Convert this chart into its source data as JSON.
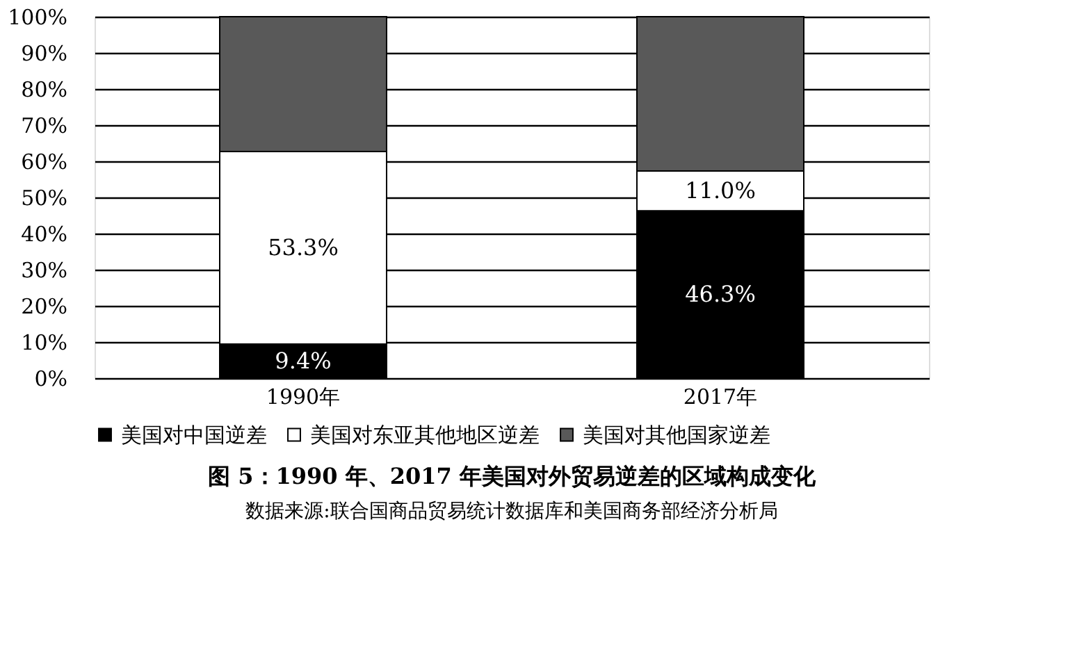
{
  "chart_data": {
    "type": "bar",
    "stacked": true,
    "title": "图 5：1990 年、2017 年美国对外贸易逆差的区域构成变化",
    "annotations": [
      "数据来源:联合国商品贸易统计数据库和美国商务部经济分析局"
    ],
    "categories": [
      "1990年",
      "2017年"
    ],
    "series": [
      {
        "name": "美国对中国逆差",
        "color": "#000000",
        "values": [
          9.4,
          46.3
        ],
        "value_labels": [
          "9.4%",
          "46.3%"
        ]
      },
      {
        "name": "美国对东亚其他地区逆差",
        "color": "#ffffff",
        "values": [
          53.3,
          11.0
        ],
        "value_labels": [
          "53.3%",
          "11.0%"
        ]
      },
      {
        "name": "美国对其他国家逆差",
        "color": "#595959",
        "values": [
          37.3,
          42.7
        ]
      }
    ],
    "ylim": [
      0,
      100
    ],
    "yticks": [
      {
        "value": 0,
        "label": "0%"
      },
      {
        "value": 10,
        "label": "10%"
      },
      {
        "value": 20,
        "label": "20%"
      },
      {
        "value": 30,
        "label": "30%"
      },
      {
        "value": 40,
        "label": "40%"
      },
      {
        "value": 50,
        "label": "50%"
      },
      {
        "value": 60,
        "label": "60%"
      },
      {
        "value": 70,
        "label": "70%"
      },
      {
        "value": 80,
        "label": "80%"
      },
      {
        "value": 90,
        "label": "90%"
      },
      {
        "value": 100,
        "label": "100%"
      }
    ],
    "grid": "y",
    "legend": "bottom"
  }
}
